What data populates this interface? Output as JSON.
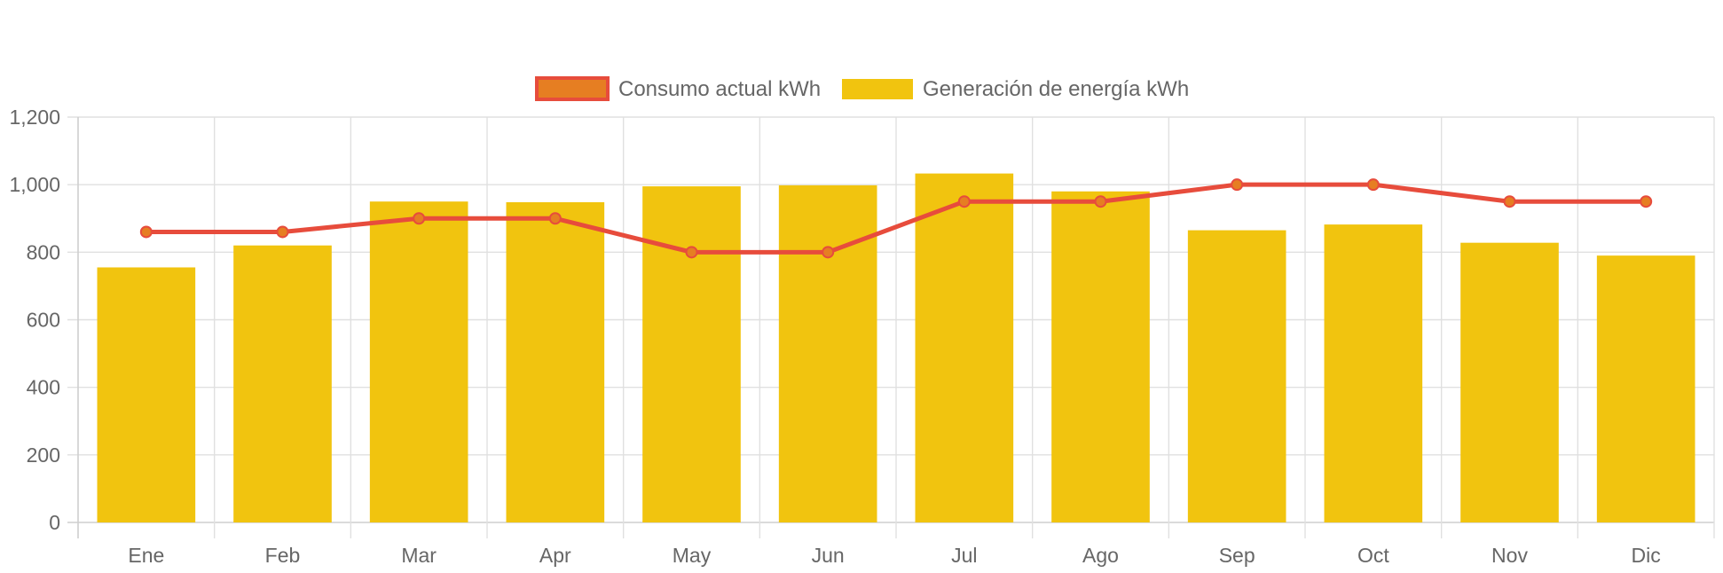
{
  "chart_data": {
    "type": "bar",
    "categories": [
      "Ene",
      "Feb",
      "Mar",
      "Apr",
      "May",
      "Jun",
      "Jul",
      "Ago",
      "Sep",
      "Oct",
      "Nov",
      "Dic"
    ],
    "series": [
      {
        "name": "Consumo actual kWh",
        "type": "line",
        "color": "#e74c3c",
        "point_fill": "#e67e22",
        "values": [
          860,
          860,
          900,
          900,
          800,
          800,
          950,
          950,
          1000,
          1000,
          950,
          950
        ]
      },
      {
        "name": "Generación de energía kWh",
        "type": "bar",
        "color": "#f1c40f",
        "values": [
          755,
          820,
          950,
          948,
          995,
          998,
          1033,
          980,
          865,
          882,
          828,
          790
        ]
      }
    ],
    "ylim": [
      0,
      1200
    ],
    "y_ticks": [
      "0",
      "200",
      "400",
      "600",
      "800",
      "1,000",
      "1,200"
    ],
    "y_tick_values": [
      0,
      200,
      400,
      600,
      800,
      1000,
      1200
    ],
    "grid": true,
    "legend_position": "top-center",
    "title": "",
    "xlabel": "",
    "ylabel": ""
  }
}
